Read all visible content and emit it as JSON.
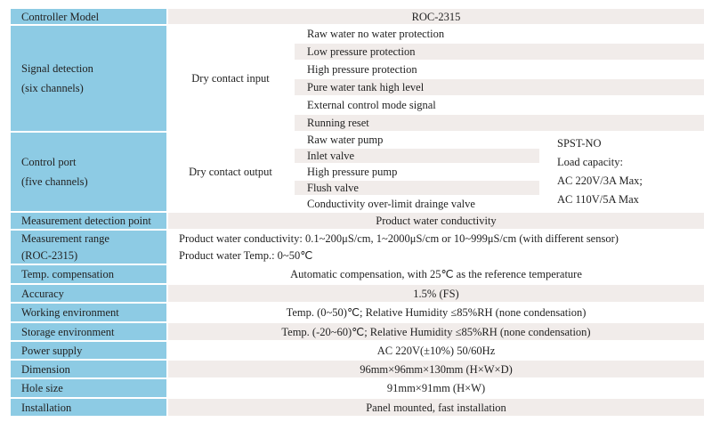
{
  "rows": {
    "model": {
      "label": "Controller Model",
      "value": "ROC-2315"
    },
    "signal": {
      "label_line1": "Signal detection",
      "label_line2": "(six channels)",
      "type": "Dry contact input",
      "items": [
        "Raw water no water protection",
        "Low pressure protection",
        "High pressure protection",
        "Pure water tank high level",
        "External control mode signal",
        "Running reset"
      ]
    },
    "control": {
      "label_line1": "Control port",
      "label_line2": "(five channels)",
      "type": "Dry contact output",
      "items": [
        "Raw water pump",
        "Inlet valve",
        "High pressure pump",
        "Flush valve",
        "Conductivity over-limit drainge valve"
      ],
      "spec": [
        "SPST-NO",
        "Load capacity:",
        "AC 220V/3A Max;",
        "AC 110V/5A Max"
      ]
    },
    "detection_point": {
      "label": "Measurement detection point",
      "value": "Product water conductivity"
    },
    "range": {
      "label_line1": "Measurement range",
      "label_line2": "(ROC-2315)",
      "value_line1": "Product water conductivity: 0.1~200μS/cm, 1~2000μS/cm or 10~999μS/cm (with different sensor)",
      "value_line2": "Product water Temp.: 0~50℃"
    },
    "simple": [
      {
        "label": "Temp. compensation",
        "value": "Automatic compensation, with 25℃ as the reference temperature"
      },
      {
        "label": "Accuracy",
        "value": "1.5% (FS)"
      },
      {
        "label": "Working environment",
        "value": "Temp. (0~50)℃; Relative Humidity ≤85%RH (none condensation)"
      },
      {
        "label": "Storage environment",
        "value": "Temp. (-20~60)℃; Relative Humidity ≤85%RH (none condensation)"
      },
      {
        "label": "Power supply",
        "value": "AC 220V(±10%) 50/60Hz"
      },
      {
        "label": "Dimension",
        "value": "96mm×96mm×130mm (H×W×D)"
      },
      {
        "label": "Hole size",
        "value": "91mm×91mm (H×W)"
      },
      {
        "label": "Installation",
        "value": "Panel mounted, fast installation"
      }
    ]
  },
  "colors": {
    "label_bg": "#8dcbe4",
    "alt_bg": "#f1ecea"
  }
}
